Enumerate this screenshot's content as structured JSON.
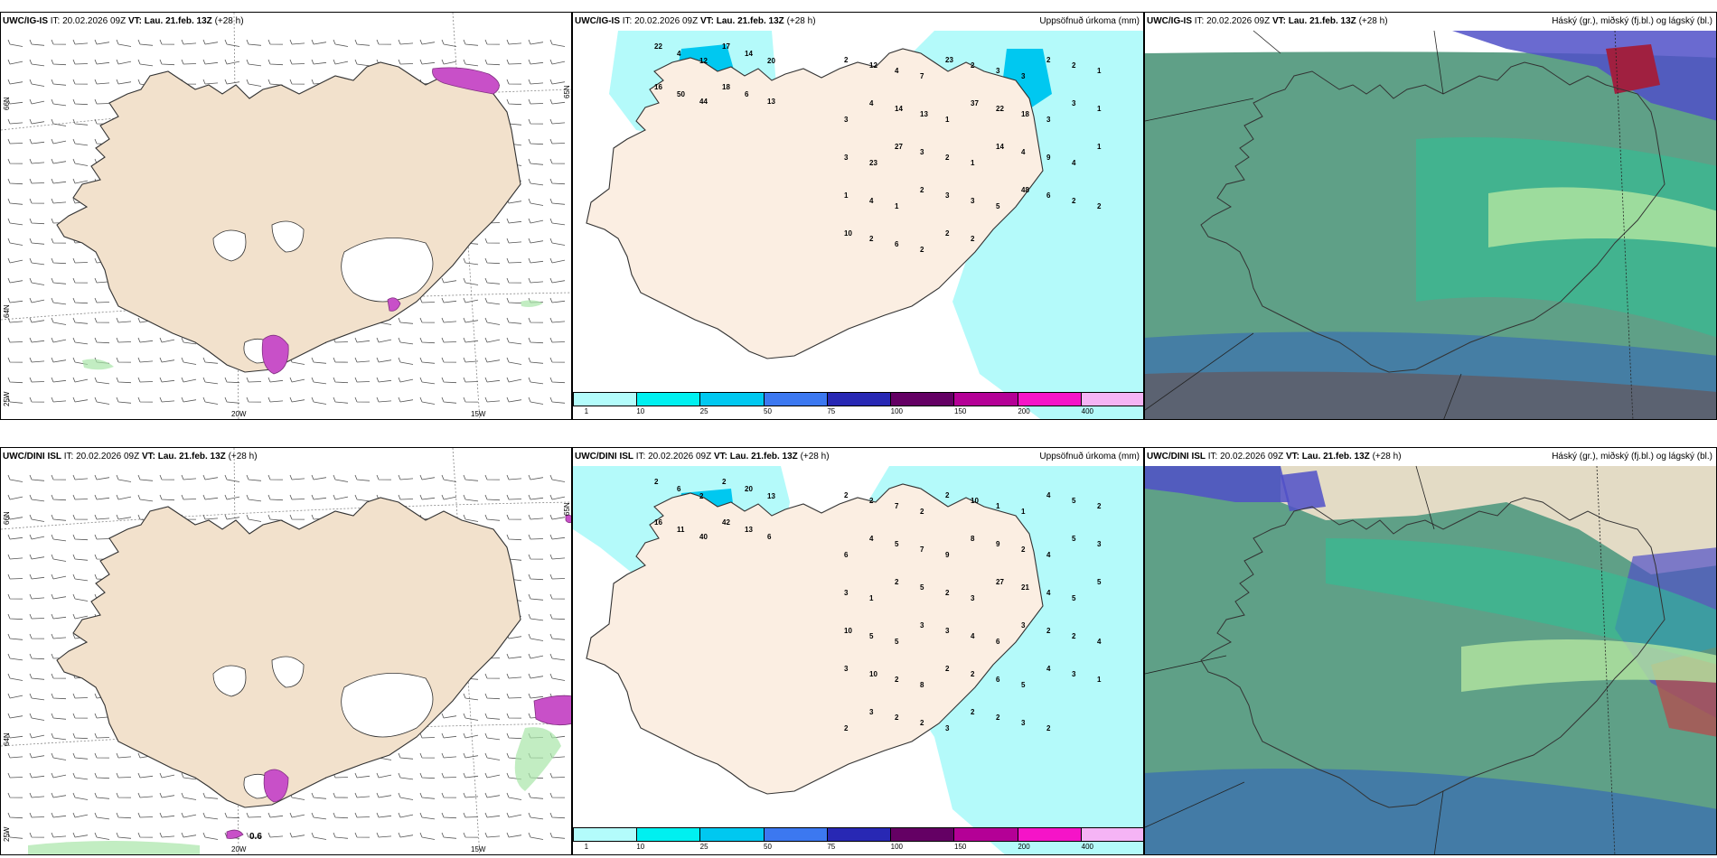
{
  "rows": [
    {
      "model": "UWC/IG-IS",
      "it_label": "IT:",
      "it_value": "20.02.2026 09Z",
      "vt_label": "VT:",
      "vt_value": "Lau. 21.feb. 13Z",
      "lead": "(+28 h)",
      "precip_title": "Uppsöfnuð úrkoma (mm)",
      "cloud_title": "Háský (gr.), miðský (fj.bl.) og lágský (bl.)",
      "lat_labels": [
        "66N",
        "64N",
        "25W",
        "65N"
      ],
      "lon_labels": [
        "20W",
        "15W"
      ],
      "precip_numbers": [
        "22",
        "4",
        "12",
        "17",
        "14",
        "20",
        "16",
        "50",
        "44",
        "18",
        "6",
        "13",
        "2",
        "12",
        "4",
        "7",
        "23",
        "2",
        "3",
        "3",
        "2",
        "2",
        "1",
        "3",
        "4",
        "14",
        "13",
        "1",
        "37",
        "22",
        "18",
        "3",
        "3",
        "1",
        "3",
        "23",
        "27",
        "3",
        "2",
        "1",
        "14",
        "4",
        "9",
        "4",
        "1",
        "1",
        "4",
        "1",
        "2",
        "3",
        "3",
        "5",
        "48",
        "6",
        "2",
        "2",
        "10",
        "2",
        "6",
        "2",
        "2",
        "2"
      ]
    },
    {
      "model": "UWC/DINI ISL",
      "it_label": "IT:",
      "it_value": "20.02.2026 09Z",
      "vt_label": "VT:",
      "vt_value": "Lau. 21.feb. 13Z",
      "lead": "(+28 h)",
      "precip_title": "Uppsöfnuð úrkoma (mm)",
      "cloud_title": "Háský (gr.), miðský (fj.bl.) og lágský (bl.)",
      "lat_labels": [
        "66N",
        "64N",
        "25W",
        "65N"
      ],
      "lon_labels": [
        "20W",
        "15W"
      ],
      "wind_value": "0.6",
      "precip_numbers": [
        "2",
        "6",
        "2",
        "2",
        "20",
        "13",
        "16",
        "11",
        "40",
        "42",
        "13",
        "6",
        "2",
        "2",
        "7",
        "2",
        "2",
        "10",
        "1",
        "1",
        "4",
        "5",
        "2",
        "6",
        "4",
        "5",
        "7",
        "9",
        "8",
        "9",
        "2",
        "4",
        "5",
        "3",
        "3",
        "1",
        "2",
        "5",
        "2",
        "3",
        "27",
        "21",
        "4",
        "5",
        "5",
        "10",
        "5",
        "5",
        "3",
        "3",
        "4",
        "6",
        "3",
        "2",
        "2",
        "4",
        "3",
        "10",
        "2",
        "8",
        "2",
        "2",
        "6",
        "5",
        "4",
        "3",
        "1",
        "2",
        "3",
        "2",
        "2",
        "3",
        "2",
        "2",
        "3",
        "2"
      ]
    }
  ],
  "colorbar": {
    "labels": [
      "1",
      "10",
      "25",
      "50",
      "75",
      "100",
      "150",
      "200",
      "400"
    ],
    "colors": [
      "#b3fcfb",
      "#00f0f0",
      "#00c8f0",
      "#3c78f0",
      "#2828b4",
      "#640064",
      "#b40096",
      "#f514c8",
      "#f5b4f5"
    ]
  },
  "colors": {
    "land": "#f2e1cc",
    "land_light": "#fbeee2",
    "cyan_precip": "#b4fafa",
    "cloud_high": "#5fa087",
    "cloud_mid": "#3a6fb0",
    "cloud_low": "#5050c8",
    "magenta": "#c850c8"
  }
}
